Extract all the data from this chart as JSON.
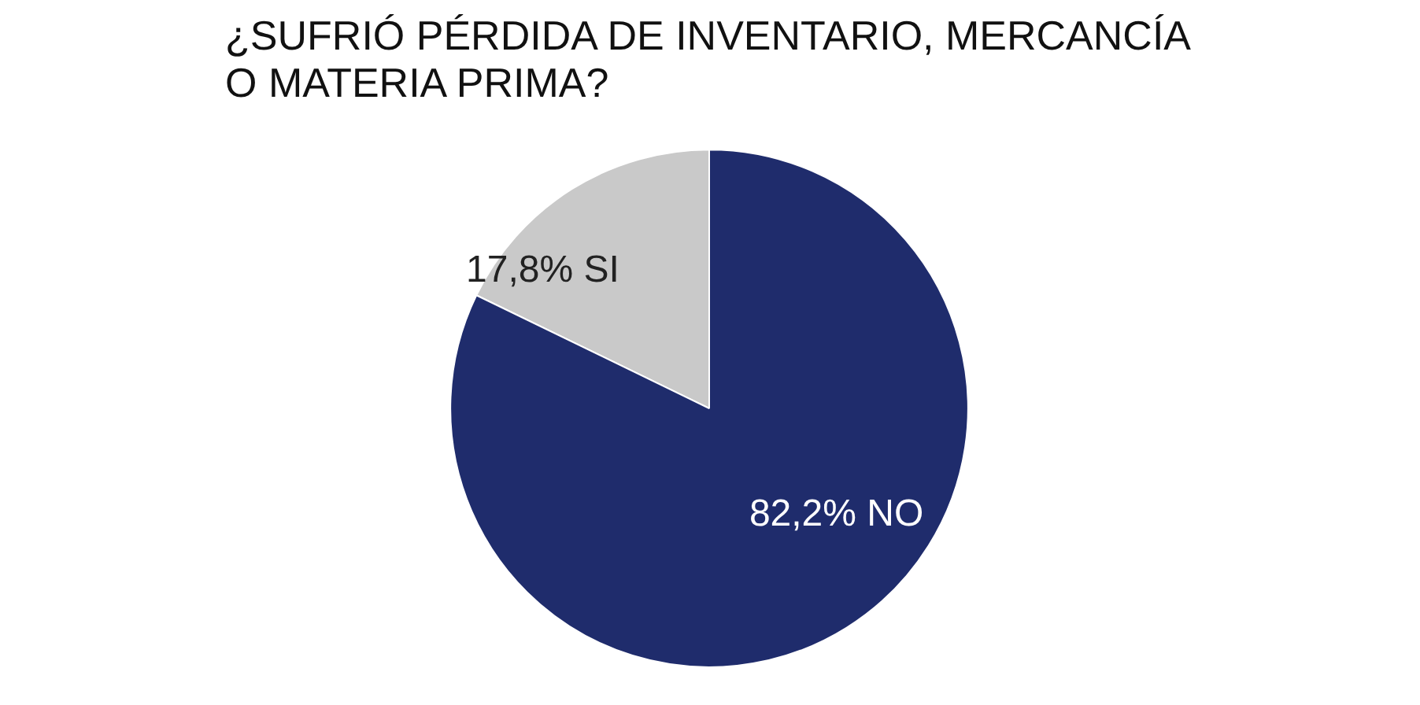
{
  "chart_data": {
    "type": "pie",
    "title": "¿SUFRIÓ PÉRDIDA DE INVENTARIO, MERCANCÍA O MATERIA PRIMA?",
    "categories": [
      "SI",
      "NO"
    ],
    "values": [
      17.8,
      82.2
    ],
    "colors": [
      "#c9c9c9",
      "#1f2c6c"
    ],
    "value_labels": [
      "17,8%",
      "82,2%"
    ]
  }
}
